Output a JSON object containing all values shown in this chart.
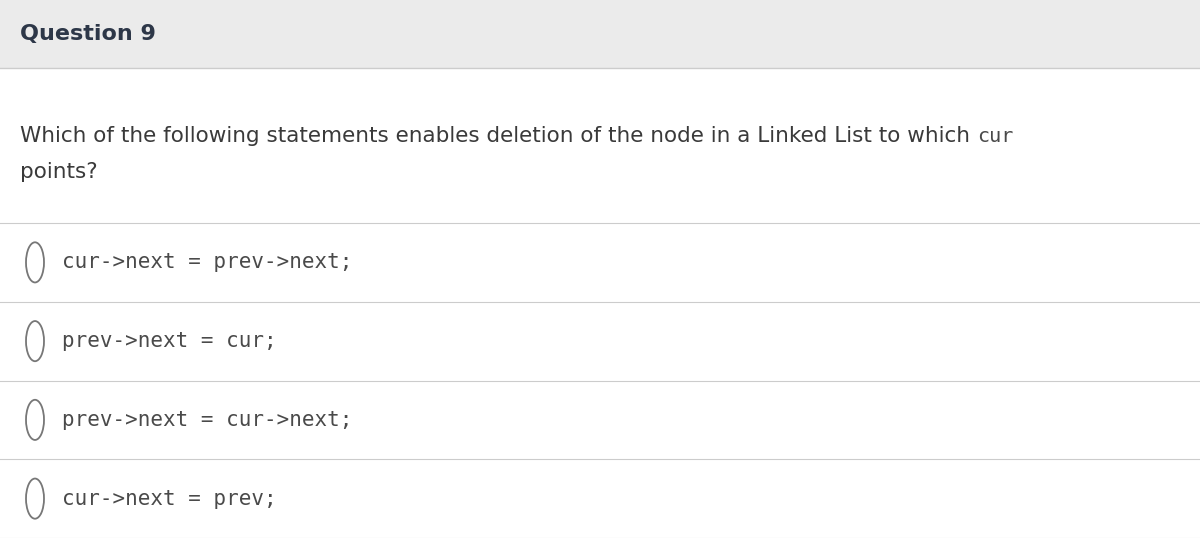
{
  "title": "Question 9",
  "title_fontsize": 16,
  "title_color": "#2d3748",
  "title_bg_color": "#ebebeb",
  "question_text_normal": "Which of the following statements enables deletion of the node in a Linked List to which ",
  "question_text_code": "cur",
  "question_text_normal2": "points?",
  "question_fontsize": 15.5,
  "question_color": "#3a3a3a",
  "code_color": "#4a4a4a",
  "options": [
    "cur->next = prev->next;",
    "prev->next = cur;",
    "prev->next = cur->next;",
    "cur->next = prev;"
  ],
  "option_fontsize": 15,
  "option_color": "#4a4a4a",
  "bg_color": "#ffffff",
  "header_bg_color": "#ebebeb",
  "separator_color": "#cccccc",
  "circle_color": "#777777",
  "fig_width": 12.0,
  "fig_height": 5.38,
  "dpi": 100
}
